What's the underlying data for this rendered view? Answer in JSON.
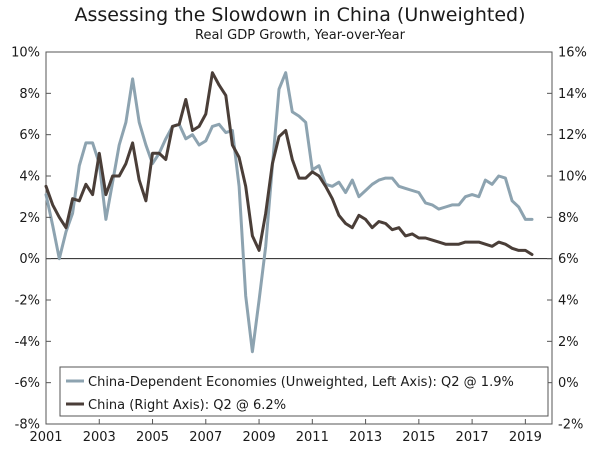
{
  "chart_data": {
    "type": "line",
    "title": "Assessing the Slowdown in China (Unweighted)",
    "subtitle": "Real GDP Growth, Year-over-Year",
    "x_ticks": [
      "2001",
      "2003",
      "2005",
      "2007",
      "2009",
      "2011",
      "2013",
      "2015",
      "2017",
      "2019"
    ],
    "x_range": [
      2001,
      2020
    ],
    "y_left": {
      "range": [
        -8,
        10
      ],
      "ticks": [
        -8,
        -6,
        -4,
        -2,
        0,
        2,
        4,
        6,
        8,
        10
      ],
      "tick_labels": [
        "-8%",
        "-6%",
        "-4%",
        "-2%",
        "0%",
        "2%",
        "4%",
        "6%",
        "8%",
        "10%"
      ]
    },
    "y_right": {
      "range": [
        -2,
        16
      ],
      "ticks": [
        -2,
        0,
        2,
        4,
        6,
        8,
        10,
        12,
        14,
        16
      ],
      "tick_labels": [
        "-2%",
        "0%",
        "2%",
        "4%",
        "6%",
        "8%",
        "10%",
        "12%",
        "14%",
        "16%"
      ]
    },
    "legend_position": "bottom-left",
    "series": [
      {
        "name": "China-Dependent Economies (Unweighted, Left Axis): Q2 @ 1.9%",
        "axis": "left",
        "color": "#8da3b0",
        "x": [
          2001.0,
          2001.25,
          2001.5,
          2001.75,
          2002.0,
          2002.25,
          2002.5,
          2002.75,
          2003.0,
          2003.25,
          2003.5,
          2003.75,
          2004.0,
          2004.25,
          2004.5,
          2004.75,
          2005.0,
          2005.25,
          2005.5,
          2005.75,
          2006.0,
          2006.25,
          2006.5,
          2006.75,
          2007.0,
          2007.25,
          2007.5,
          2007.75,
          2008.0,
          2008.25,
          2008.5,
          2008.75,
          2009.0,
          2009.25,
          2009.5,
          2009.75,
          2010.0,
          2010.25,
          2010.5,
          2010.75,
          2011.0,
          2011.25,
          2011.5,
          2011.75,
          2012.0,
          2012.25,
          2012.5,
          2012.75,
          2013.0,
          2013.25,
          2013.5,
          2013.75,
          2014.0,
          2014.25,
          2014.5,
          2014.75,
          2015.0,
          2015.25,
          2015.5,
          2015.75,
          2016.0,
          2016.25,
          2016.5,
          2016.75,
          2017.0,
          2017.25,
          2017.5,
          2017.75,
          2018.0,
          2018.25,
          2018.5,
          2018.75,
          2019.0,
          2019.25
        ],
        "values": [
          3.1,
          1.6,
          0.0,
          1.3,
          2.2,
          4.5,
          5.6,
          5.6,
          4.6,
          1.9,
          3.7,
          5.5,
          6.6,
          8.7,
          6.6,
          5.5,
          4.6,
          5.1,
          5.8,
          6.4,
          6.5,
          5.8,
          6.0,
          5.5,
          5.7,
          6.4,
          6.5,
          6.1,
          6.2,
          3.5,
          -1.8,
          -4.5,
          -2.0,
          0.6,
          4.5,
          8.2,
          9.0,
          7.1,
          6.9,
          6.6,
          4.3,
          4.5,
          3.6,
          3.5,
          3.7,
          3.2,
          3.8,
          3.0,
          3.3,
          3.6,
          3.8,
          3.9,
          3.9,
          3.5,
          3.4,
          3.3,
          3.2,
          2.7,
          2.6,
          2.4,
          2.5,
          2.6,
          2.6,
          3.0,
          3.1,
          3.0,
          3.8,
          3.6,
          4.0,
          3.9,
          2.8,
          2.5,
          1.9,
          1.9
        ]
      },
      {
        "name": "China (Right Axis): Q2 @ 6.2%",
        "axis": "right",
        "color": "#4a3e38",
        "x": [
          2001.0,
          2001.25,
          2001.5,
          2001.75,
          2002.0,
          2002.25,
          2002.5,
          2002.75,
          2003.0,
          2003.25,
          2003.5,
          2003.75,
          2004.0,
          2004.25,
          2004.5,
          2004.75,
          2005.0,
          2005.25,
          2005.5,
          2005.75,
          2006.0,
          2006.25,
          2006.5,
          2006.75,
          2007.0,
          2007.25,
          2007.5,
          2007.75,
          2008.0,
          2008.25,
          2008.5,
          2008.75,
          2009.0,
          2009.25,
          2009.5,
          2009.75,
          2010.0,
          2010.25,
          2010.5,
          2010.75,
          2011.0,
          2011.25,
          2011.5,
          2011.75,
          2012.0,
          2012.25,
          2012.5,
          2012.75,
          2013.0,
          2013.25,
          2013.5,
          2013.75,
          2014.0,
          2014.25,
          2014.5,
          2014.75,
          2015.0,
          2015.25,
          2015.5,
          2015.75,
          2016.0,
          2016.25,
          2016.5,
          2016.75,
          2017.0,
          2017.25,
          2017.5,
          2017.75,
          2018.0,
          2018.25,
          2018.5,
          2018.75,
          2019.0,
          2019.25
        ],
        "values": [
          9.5,
          8.6,
          8.0,
          7.5,
          8.9,
          8.8,
          9.6,
          9.1,
          11.1,
          9.1,
          10.0,
          10.0,
          10.6,
          11.6,
          9.8,
          8.8,
          11.1,
          11.1,
          10.8,
          12.4,
          12.5,
          13.7,
          12.2,
          12.4,
          13.0,
          15.0,
          14.4,
          13.9,
          11.5,
          10.9,
          9.5,
          7.1,
          6.4,
          8.2,
          10.6,
          11.9,
          12.2,
          10.8,
          9.9,
          9.9,
          10.2,
          10.0,
          9.5,
          8.9,
          8.1,
          7.7,
          7.5,
          8.1,
          7.9,
          7.5,
          7.8,
          7.7,
          7.4,
          7.5,
          7.1,
          7.2,
          7.0,
          7.0,
          6.9,
          6.8,
          6.7,
          6.7,
          6.7,
          6.8,
          6.8,
          6.8,
          6.7,
          6.6,
          6.8,
          6.7,
          6.5,
          6.4,
          6.4,
          6.2
        ]
      }
    ]
  }
}
